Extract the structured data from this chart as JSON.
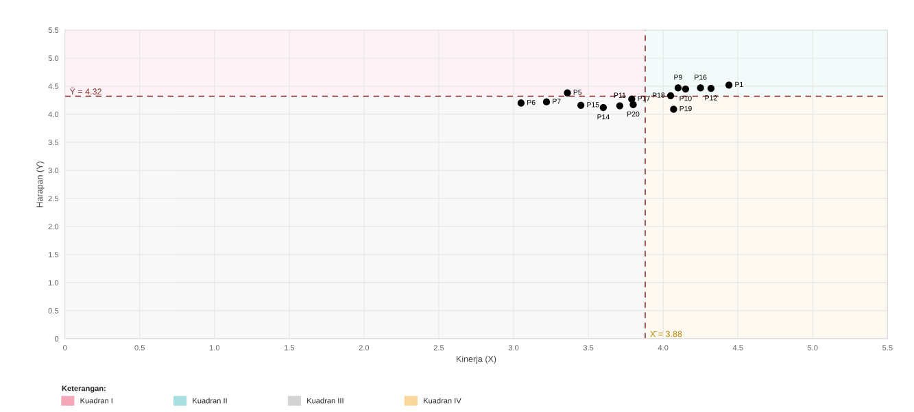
{
  "chart_data": {
    "type": "scatter",
    "xlabel": "Kinerja (X)",
    "ylabel": "Harapan (Y)",
    "x": [
      3.05,
      3.22,
      3.36,
      3.45,
      3.6,
      3.71,
      3.79,
      3.8,
      4.05,
      4.07,
      4.1,
      4.15,
      4.25,
      4.32,
      4.44
    ],
    "series": [
      {
        "color": "#000000",
        "values": [
          4.2,
          4.22,
          4.38,
          4.16,
          4.12,
          4.15,
          4.27,
          4.17,
          4.33,
          4.09,
          4.47,
          4.45,
          4.47,
          4.46,
          4.52
        ]
      }
    ],
    "marker": "circle",
    "annotations": [
      {
        "text": "P6",
        "x": 3.05,
        "y": 4.2
      },
      {
        "text": "P7",
        "x": 3.22,
        "y": 4.22
      },
      {
        "text": "P5",
        "x": 3.36,
        "y": 4.38
      },
      {
        "text": "P15",
        "x": 3.45,
        "y": 4.16
      },
      {
        "text": "P14",
        "x": 3.6,
        "y": 4.12
      },
      {
        "text": "P11",
        "x": 3.71,
        "y": 4.15
      },
      {
        "text": "P17",
        "x": 3.79,
        "y": 4.27
      },
      {
        "text": "P20",
        "x": 3.8,
        "y": 4.17
      },
      {
        "text": "P18",
        "x": 4.05,
        "y": 4.33
      },
      {
        "text": "P19",
        "x": 4.07,
        "y": 4.09
      },
      {
        "text": "P9",
        "x": 4.1,
        "y": 4.47
      },
      {
        "text": "P10",
        "x": 4.15,
        "y": 4.45
      },
      {
        "text": "P16",
        "x": 4.25,
        "y": 4.47
      },
      {
        "text": "P12",
        "x": 4.32,
        "y": 4.46
      },
      {
        "text": "P1",
        "x": 4.44,
        "y": 4.52
      }
    ],
    "ref_lines": [
      {
        "axis": "y",
        "value": 4.32,
        "label": "Ȳ = 4.32",
        "color": "#8b3a3a",
        "line_style": "dashed"
      },
      {
        "axis": "x",
        "value": 3.88,
        "label": "X̄ = 3.88",
        "color": "#8b3a3a",
        "line_style": "dashed"
      }
    ],
    "bands": [
      {
        "axis": "x",
        "from": 0,
        "to": 3.88,
        "label": "Kuadran I",
        "color": "#f4a7b9"
      },
      {
        "axis": "x",
        "from": 3.88,
        "to": 5.5,
        "label": "Kuadran II",
        "color": "#a8dede"
      },
      {
        "axis": "x",
        "from": 0,
        "to": 3.88,
        "label": "Kuadran III",
        "color": "#d3d3d3"
      },
      {
        "axis": "x",
        "from": 3.88,
        "to": 5.5,
        "label": "Kuadran IV",
        "color": "#fad79a"
      }
    ],
    "legend": "bottom left",
    "legend_title": "Keterangan:",
    "xlim": [
      0,
      5.5
    ],
    "ylim": [
      0,
      5.5
    ],
    "xticks": [
      {
        "value": 0,
        "label": "0"
      },
      {
        "value": 0.5,
        "label": "0.5"
      },
      {
        "value": 1,
        "label": "1.0"
      },
      {
        "value": 1.5,
        "label": "1.5"
      },
      {
        "value": 2,
        "label": "2.0"
      },
      {
        "value": 2.5,
        "label": "2.5"
      },
      {
        "value": 3,
        "label": "3.0"
      },
      {
        "value": 3.5,
        "label": "3.5"
      },
      {
        "value": 4,
        "label": "4.0"
      },
      {
        "value": 4.5,
        "label": "4.5"
      },
      {
        "value": 5,
        "label": "5.0"
      },
      {
        "value": 5.5,
        "label": "5.5"
      }
    ],
    "yticks": [
      {
        "value": 0,
        "label": "0"
      },
      {
        "value": 0.5,
        "label": "0.5"
      },
      {
        "value": 1,
        "label": "1.0"
      },
      {
        "value": 1.5,
        "label": "1.5"
      },
      {
        "value": 2,
        "label": "2.0"
      },
      {
        "value": 2.5,
        "label": "2.5"
      },
      {
        "value": 3,
        "label": "3.0"
      },
      {
        "value": 3.5,
        "label": "3.5"
      },
      {
        "value": 4,
        "label": "4.0"
      },
      {
        "value": 4.5,
        "label": "4.5"
      },
      {
        "value": 5,
        "label": "5.0"
      },
      {
        "value": 5.5,
        "label": "5.5"
      }
    ],
    "grid": true
  }
}
